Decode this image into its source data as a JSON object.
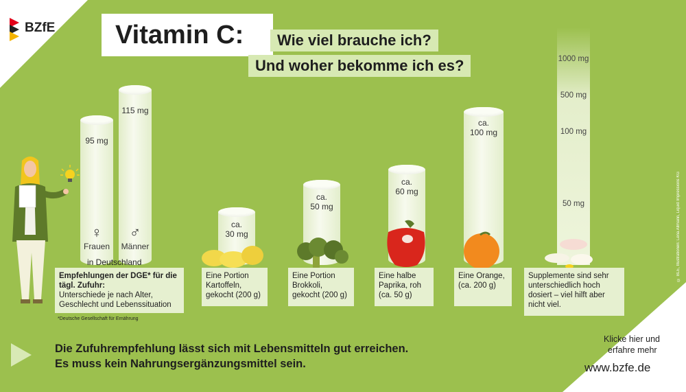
{
  "logo": {
    "text": "BZfE"
  },
  "title": {
    "main": "Vitamin C:",
    "line1": "Wie viel brauche ich?",
    "line2": "Und woher bekomme ich es?"
  },
  "recommendation": {
    "women": {
      "value": "95 mg",
      "label": "Frauen",
      "symbol": "♀"
    },
    "men": {
      "value": "115 mg",
      "label": "Männer",
      "symbol": "♂"
    },
    "region": "in Deutschland",
    "box_heading": "Empfehlungen der DGE* für die tägl. Zufuhr:",
    "box_text": "Unterschiede je nach Alter, Geschlecht und Lebenssituation",
    "footnote": "*Deutsche Gesellschaft für Ernährung"
  },
  "foods": [
    {
      "approx": "ca.",
      "value": "30 mg",
      "text": "Eine Portion Kartoffeln, gekocht (200 g)"
    },
    {
      "approx": "ca.",
      "value": "50 mg",
      "text": "Eine Portion Brokkoli, gekocht (200 g)"
    },
    {
      "approx": "ca.",
      "value": "60 mg",
      "text": "Eine halbe Paprika, roh (ca. 50 g)"
    },
    {
      "approx": "ca.",
      "value": "100 mg",
      "text": "Eine Orange, (ca. 200 g)"
    }
  ],
  "supplements": {
    "scale": [
      "1000 mg",
      "500 mg",
      "100 mg",
      "50 mg"
    ],
    "text": "Supplemente sind sehr unterschiedlich hoch dosiert – viel hilft aber nicht viel."
  },
  "bottom": {
    "line1": "Die Zufuhrempfehlung lässt sich mit Lebensmitteln gut erreichen.",
    "line2": "Es muss kein Nahrungsergänzungsmittel sein."
  },
  "cta": {
    "line1": "Klicke hier und",
    "line2": "erfahre mehr",
    "url": "www.bzfe.de"
  },
  "credit": "© BLE, Illustrationen: Lena Allmann, Liquid Impressions KG",
  "colors": {
    "background": "#9cc04e",
    "box": "#e6f0d0",
    "accent": "#d8e9b5"
  }
}
